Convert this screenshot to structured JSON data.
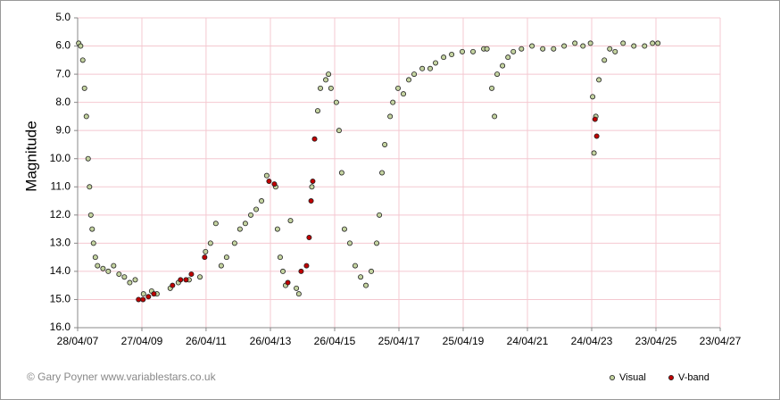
{
  "chart_data": {
    "type": "scatter",
    "y_title": "Magnitude",
    "credit": "© Gary Poyner www.variablestars.co.uk",
    "xlim": [
      "2007-04-28",
      "2027-04-23"
    ],
    "xticks": [
      {
        "value": "2007-04-28",
        "label": "28/04/07"
      },
      {
        "value": "2009-04-27",
        "label": "27/04/09"
      },
      {
        "value": "2011-04-26",
        "label": "26/04/11"
      },
      {
        "value": "2013-04-26",
        "label": "26/04/13"
      },
      {
        "value": "2015-04-26",
        "label": "26/04/15"
      },
      {
        "value": "2017-04-25",
        "label": "25/04/17"
      },
      {
        "value": "2019-04-25",
        "label": "25/04/19"
      },
      {
        "value": "2021-04-24",
        "label": "24/04/21"
      },
      {
        "value": "2023-04-24",
        "label": "24/04/23"
      },
      {
        "value": "2025-04-23",
        "label": "23/04/25"
      },
      {
        "value": "2027-04-23",
        "label": "23/04/27"
      }
    ],
    "ylim": [
      5,
      16
    ],
    "y_inverted": true,
    "yticks": [
      {
        "value": 5,
        "label": "5.0"
      },
      {
        "value": 6,
        "label": "6.0"
      },
      {
        "value": 7,
        "label": "7.0"
      },
      {
        "value": 8,
        "label": "8.0"
      },
      {
        "value": 9,
        "label": "9.0"
      },
      {
        "value": 10,
        "label": "10.0"
      },
      {
        "value": 11,
        "label": "11.0"
      },
      {
        "value": 12,
        "label": "12.0"
      },
      {
        "value": 13,
        "label": "13.0"
      },
      {
        "value": 14,
        "label": "14.0"
      },
      {
        "value": 15,
        "label": "15.0"
      },
      {
        "value": 16,
        "label": "16.0"
      }
    ],
    "grid": true,
    "legend": "bottom-right",
    "series": [
      {
        "name": "Visual",
        "color": "#c4d3a0",
        "x": [
          "2007-05-10",
          "2007-06-01",
          "2007-06-25",
          "2007-07-15",
          "2007-08-05",
          "2007-08-25",
          "2007-09-10",
          "2007-09-25",
          "2007-10-10",
          "2007-10-25",
          "2007-11-15",
          "2007-12-10",
          "2008-02-10",
          "2008-04-10",
          "2008-06-10",
          "2008-08-10",
          "2008-10-10",
          "2008-12-10",
          "2009-02-10",
          "2009-05-15",
          "2009-08-15",
          "2009-10-15",
          "2010-03-15",
          "2010-06-15",
          "2010-10-15",
          "2011-02-15",
          "2011-04-20",
          "2011-06-15",
          "2011-08-15",
          "2011-10-15",
          "2011-12-15",
          "2012-03-15",
          "2012-05-15",
          "2012-07-15",
          "2012-09-15",
          "2012-11-15",
          "2013-01-15",
          "2013-03-15",
          "2013-06-25",
          "2013-07-15",
          "2013-08-15",
          "2013-09-15",
          "2013-10-15",
          "2013-12-10",
          "2014-02-15",
          "2014-03-15",
          "2014-08-10",
          "2014-10-15",
          "2014-11-15",
          "2015-01-15",
          "2015-02-15",
          "2015-03-15",
          "2015-05-15",
          "2015-06-15",
          "2015-07-15",
          "2015-08-15",
          "2015-10-15",
          "2015-12-15",
          "2016-02-15",
          "2016-04-15",
          "2016-06-15",
          "2016-08-15",
          "2016-09-15",
          "2016-10-15",
          "2016-11-15",
          "2017-01-15",
          "2017-02-15",
          "2017-04-15",
          "2017-06-15",
          "2017-08-15",
          "2017-10-15",
          "2018-01-15",
          "2018-04-15",
          "2018-06-15",
          "2018-09-15",
          "2018-12-15",
          "2019-04-15",
          "2019-08-15",
          "2019-12-15",
          "2020-01-20",
          "2020-03-15",
          "2020-04-15",
          "2020-05-15",
          "2020-07-15",
          "2020-09-15",
          "2020-11-15",
          "2021-02-15",
          "2021-06-15",
          "2021-10-15",
          "2022-02-15",
          "2022-06-15",
          "2022-10-15",
          "2023-01-15",
          "2023-04-10",
          "2023-05-05",
          "2023-05-20",
          "2023-06-10",
          "2023-07-15",
          "2023-09-15",
          "2023-11-15",
          "2024-01-15",
          "2024-04-15",
          "2024-08-15",
          "2024-12-15",
          "2025-03-15",
          "2025-05-15"
        ],
        "values": [
          5.9,
          6.0,
          6.5,
          7.5,
          8.5,
          10.0,
          11.0,
          12.0,
          12.5,
          13.0,
          13.5,
          13.8,
          13.9,
          14.0,
          13.8,
          14.1,
          14.2,
          14.4,
          14.3,
          14.8,
          14.7,
          14.8,
          14.6,
          14.4,
          14.3,
          14.2,
          13.3,
          13.0,
          12.3,
          13.8,
          13.5,
          13.0,
          12.5,
          12.3,
          12.0,
          11.8,
          11.5,
          10.6,
          11.0,
          12.5,
          13.5,
          14.0,
          14.5,
          12.2,
          14.6,
          14.8,
          11.0,
          8.3,
          7.5,
          7.2,
          7.0,
          7.5,
          8.0,
          9.0,
          10.5,
          12.5,
          13.0,
          13.8,
          14.2,
          14.5,
          14.0,
          13.0,
          12.0,
          10.5,
          9.5,
          8.5,
          8.0,
          7.5,
          7.7,
          7.2,
          7.0,
          6.8,
          6.8,
          6.6,
          6.4,
          6.3,
          6.2,
          6.2,
          6.1,
          6.1,
          7.5,
          8.5,
          7.0,
          6.7,
          6.4,
          6.2,
          6.1,
          6.0,
          6.1,
          6.1,
          6.0,
          5.9,
          6.0,
          5.9,
          7.8,
          9.8,
          8.5,
          7.2,
          6.5,
          6.1,
          6.2,
          5.9,
          6.0,
          6.0,
          5.9,
          5.9
        ]
      },
      {
        "name": "V-band",
        "color": "#c00000",
        "x": [
          "2009-03-20",
          "2009-05-10",
          "2009-07-10",
          "2009-09-10",
          "2010-04-10",
          "2010-07-10",
          "2010-09-10",
          "2010-11-10",
          "2011-04-10",
          "2013-04-10",
          "2013-06-10",
          "2013-11-10",
          "2014-04-10",
          "2014-06-10",
          "2014-07-10",
          "2014-08-01",
          "2014-08-20",
          "2014-09-10",
          "2023-06-01",
          "2023-06-20"
        ],
        "values": [
          15.0,
          15.0,
          14.9,
          14.8,
          14.5,
          14.3,
          14.3,
          14.1,
          13.5,
          10.8,
          10.9,
          14.4,
          14.0,
          13.8,
          12.8,
          11.5,
          10.8,
          9.3,
          8.6,
          9.2
        ]
      }
    ]
  }
}
